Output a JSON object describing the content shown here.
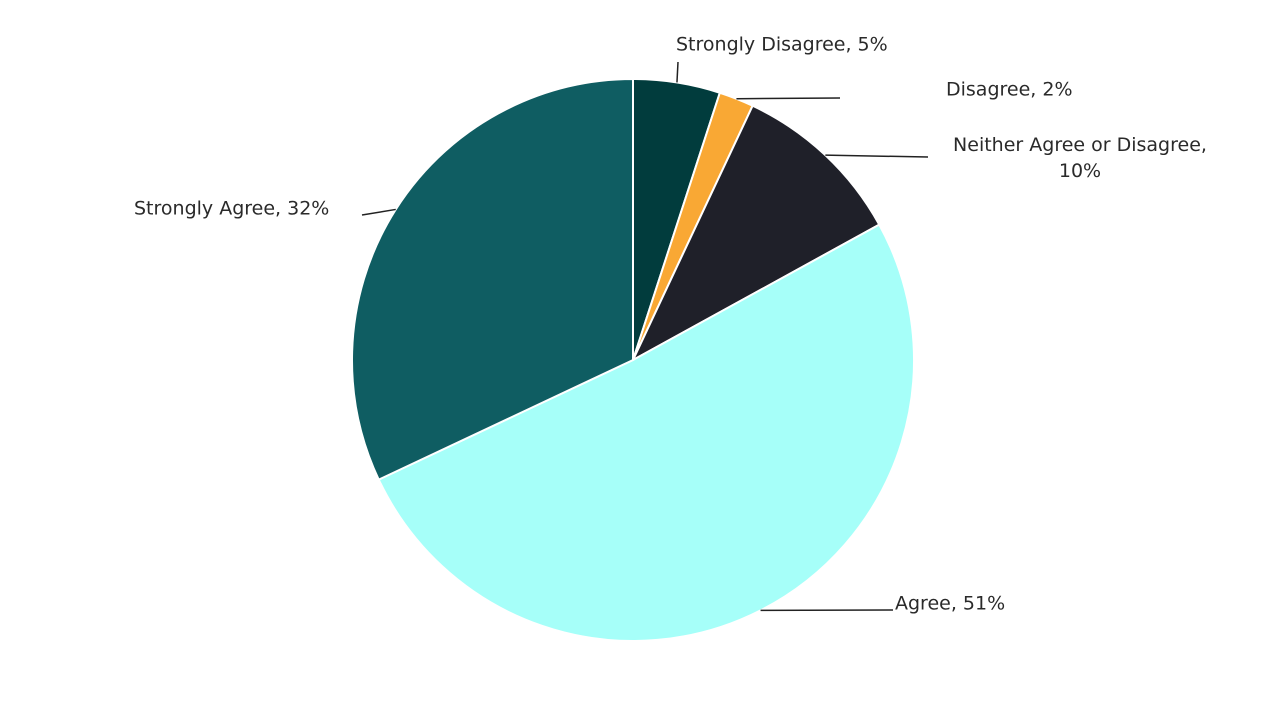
{
  "chart_data": {
    "type": "pie",
    "values": [
      5,
      2,
      10,
      51,
      32
    ],
    "value_labels": [
      "Strongly Disagree, 5%",
      "Disagree, 2%",
      "Neither Agree or Disagree, 10%",
      "Agree, 51%",
      "Strongly Agree, 32%"
    ],
    "colors": [
      "#013c3d",
      "#f9a834",
      "#1f2029",
      "#a6fff9",
      "#0f5d62"
    ]
  }
}
